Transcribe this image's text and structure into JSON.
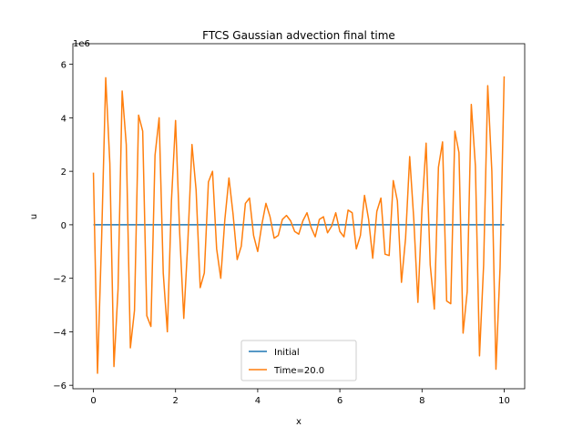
{
  "chart_data": {
    "type": "line",
    "title": "FTCS Gaussian advection final time",
    "x_label": "x",
    "y_label": "u",
    "y_offset_text": "1e6",
    "xlim": [
      -0.5,
      10.5
    ],
    "ylim": [
      -6.13,
      6.43
    ],
    "xticks": [
      0,
      2,
      4,
      6,
      8,
      10
    ],
    "yticks": [
      {
        "value": -6,
        "label": "−6"
      },
      {
        "value": -4,
        "label": "−4"
      },
      {
        "value": -2,
        "label": "−2"
      },
      0,
      2,
      4,
      6
    ],
    "legend": "lower center",
    "series": [
      {
        "name": "Initial",
        "color": "#1f77b4",
        "x": [
          0,
          10
        ],
        "values": [
          0,
          0
        ]
      },
      {
        "name": "Time=20.0",
        "color": "#ff7f0e",
        "x": [
          0,
          0.1,
          0.2,
          0.3,
          0.4,
          0.5,
          0.6,
          0.7,
          0.8,
          0.9,
          1,
          1.1,
          1.2,
          1.3,
          1.4,
          1.5,
          1.6,
          1.7,
          1.8,
          1.9,
          2,
          2.1,
          2.2,
          2.3,
          2.4,
          2.5,
          2.6,
          2.7,
          2.8,
          2.9,
          3,
          3.1,
          3.2,
          3.3,
          3.4,
          3.5,
          3.6,
          3.7,
          3.8,
          3.9,
          4,
          4.1,
          4.2,
          4.3,
          4.4,
          4.5,
          4.6,
          4.7,
          4.8,
          4.9,
          5,
          5.1,
          5.2,
          5.3,
          5.4,
          5.5,
          5.6,
          5.7,
          5.8,
          5.9,
          6,
          6.1,
          6.2,
          6.3,
          6.4,
          6.5,
          6.6,
          6.7,
          6.8,
          6.9,
          7,
          7.1,
          7.2,
          7.3,
          7.4,
          7.5,
          7.6,
          7.7,
          7.8,
          7.9,
          8,
          8.1,
          8.2,
          8.3,
          8.4,
          8.5,
          8.6,
          8.7,
          8.8,
          8.9,
          9,
          9.1,
          9.2,
          9.3,
          9.4,
          9.5,
          9.6,
          9.7,
          9.8,
          9.9,
          10
        ],
        "values": [
          1.95,
          -5.55,
          -0.5,
          5.5,
          2.3,
          -5.3,
          -2.4,
          5.0,
          3.0,
          -4.6,
          -3.2,
          4.1,
          3.5,
          -3.4,
          -3.8,
          2.6,
          4.0,
          -1.8,
          -4.0,
          0.9,
          3.9,
          -0.3,
          -3.5,
          -0.6,
          3.0,
          1.3,
          -2.35,
          -1.8,
          1.6,
          2.0,
          -0.9,
          -2.0,
          0.2,
          1.75,
          0.4,
          -1.3,
          -0.8,
          0.8,
          1.0,
          -0.4,
          -1.0,
          0.0,
          0.8,
          0.3,
          -0.5,
          -0.4,
          0.2,
          0.35,
          0.15,
          -0.25,
          -0.35,
          0.15,
          0.45,
          -0.1,
          -0.45,
          0.2,
          0.3,
          -0.3,
          -0.05,
          0.45,
          -0.25,
          -0.45,
          0.55,
          0.45,
          -0.9,
          -0.4,
          1.1,
          0.2,
          -1.25,
          0.5,
          1.0,
          -1.1,
          -1.15,
          1.65,
          0.9,
          -2.15,
          -0.5,
          2.55,
          0.2,
          -2.9,
          0.6,
          3.05,
          -1.5,
          -3.15,
          2.15,
          3.1,
          -2.85,
          -2.95,
          3.5,
          2.7,
          -4.05,
          -2.5,
          4.5,
          2.2,
          -4.9,
          -1.5,
          5.2,
          2.0,
          -5.4,
          -1.6,
          5.55
        ]
      }
    ]
  }
}
